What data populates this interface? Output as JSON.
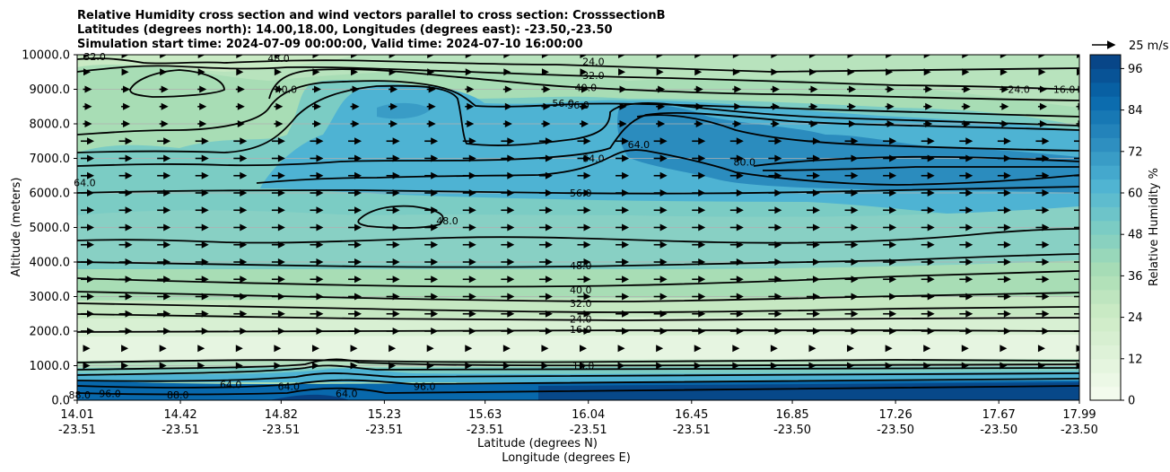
{
  "chart_data": {
    "type": "contour",
    "title_lines": [
      "Relative Humidity cross section and wind vectors parallel to cross section: CrosssectionB",
      "Latitudes (degrees north): 14.00,18.00, Longitudes (degrees east): -23.50,-23.50",
      "Simulation start time: 2024-07-09 00:00:00, Valid time: 2024-07-10 16:00:00"
    ],
    "xlabel_lat": "Latitude (degrees N)",
    "xlabel_lon": "Longitude (degrees E)",
    "ylabel": "Altitude (meters)",
    "x_tick_lat": [
      "14.01",
      "14.42",
      "14.82",
      "15.23",
      "15.63",
      "16.04",
      "16.45",
      "16.85",
      "17.26",
      "17.67",
      "17.99"
    ],
    "x_tick_lon": [
      "-23.51",
      "-23.51",
      "-23.51",
      "-23.51",
      "-23.51",
      "-23.51",
      "-23.51",
      "-23.50",
      "-23.50",
      "-23.50",
      "-23.50"
    ],
    "y_ticks": [
      "0.0",
      "1000.0",
      "2000.0",
      "3000.0",
      "4000.0",
      "5000.0",
      "6000.0",
      "7000.0",
      "8000.0",
      "9000.0",
      "10000.0"
    ],
    "ylim": [
      0,
      10000
    ],
    "grid": "horizontal",
    "colorbar": {
      "label": "Relative Humidity %",
      "ticks": [
        "0",
        "12",
        "24",
        "36",
        "48",
        "60",
        "72",
        "84",
        "96"
      ],
      "range": [
        0,
        100
      ],
      "colormap": "GnBu",
      "stops": [
        "#f7fcf0",
        "#e0f3db",
        "#ccebc5",
        "#a8ddb5",
        "#7bccc4",
        "#4eb3d3",
        "#2b8cbe",
        "#0868ac",
        "#084081"
      ]
    },
    "quiver_key": "25 m/s",
    "contour_levels": [
      16,
      24,
      32,
      40,
      48,
      56,
      64,
      80,
      88,
      96
    ],
    "contour_labels": [
      {
        "text": "32.0",
        "lat": 14.08,
        "alt": 9950
      },
      {
        "text": "48.0",
        "lat": 14.81,
        "alt": 9900
      },
      {
        "text": "40.0",
        "lat": 14.84,
        "alt": 9000
      },
      {
        "text": "24.0",
        "lat": 16.06,
        "alt": 9800
      },
      {
        "text": "32.0",
        "lat": 16.06,
        "alt": 9400
      },
      {
        "text": "40.0",
        "lat": 16.03,
        "alt": 9050
      },
      {
        "text": "56.0",
        "lat": 16.0,
        "alt": 8550
      },
      {
        "text": "56.0",
        "lat": 15.94,
        "alt": 8600
      },
      {
        "text": "24.0",
        "lat": 17.75,
        "alt": 9000
      },
      {
        "text": "16.0",
        "lat": 17.93,
        "alt": 9000
      },
      {
        "text": "64.0",
        "lat": 16.24,
        "alt": 7400
      },
      {
        "text": "64.0",
        "lat": 16.06,
        "alt": 7000
      },
      {
        "text": "80.0",
        "lat": 16.66,
        "alt": 6900
      },
      {
        "text": "64.0",
        "lat": 14.04,
        "alt": 6300
      },
      {
        "text": "56.0",
        "lat": 16.01,
        "alt": 6000
      },
      {
        "text": "48.0",
        "lat": 15.48,
        "alt": 5200
      },
      {
        "text": "48.0",
        "lat": 16.01,
        "alt": 3900
      },
      {
        "text": "40.0",
        "lat": 16.01,
        "alt": 3200
      },
      {
        "text": "32.0",
        "lat": 16.01,
        "alt": 2800
      },
      {
        "text": "24.0",
        "lat": 16.01,
        "alt": 2350
      },
      {
        "text": "16.0",
        "lat": 16.01,
        "alt": 2050
      },
      {
        "text": "16.0",
        "lat": 16.02,
        "alt": 1000
      },
      {
        "text": "96.0",
        "lat": 14.14,
        "alt": 200
      },
      {
        "text": "88.0",
        "lat": 14.41,
        "alt": 150
      },
      {
        "text": "64.0",
        "lat": 14.62,
        "alt": 450
      },
      {
        "text": "64.0",
        "lat": 14.85,
        "alt": 400
      },
      {
        "text": "64.0",
        "lat": 15.08,
        "alt": 200
      },
      {
        "text": "96.0",
        "lat": 15.39,
        "alt": 400
      },
      {
        "text": "88.0",
        "lat": 14.02,
        "alt": 150
      }
    ],
    "wind": "uniform vectors pointing in the +latitude direction"
  }
}
